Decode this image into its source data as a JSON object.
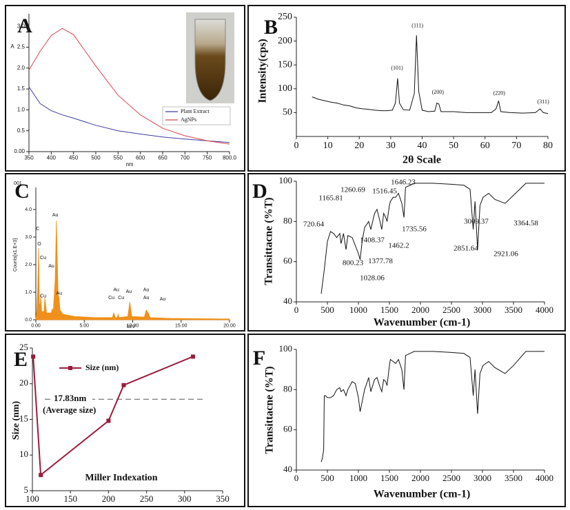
{
  "chart_data": [
    {
      "type": "line",
      "label": "A",
      "ylabel": "A",
      "xlabel": "nm",
      "x": [
        350,
        375,
        400,
        425,
        450,
        500,
        550,
        600,
        650,
        700,
        750,
        800
      ],
      "series": [
        {
          "name": "Plant Extract",
          "color": "#3c3c9c",
          "values": [
            1.55,
            1.15,
            0.98,
            0.88,
            0.8,
            0.63,
            0.5,
            0.42,
            0.35,
            0.3,
            0.26,
            0.22
          ]
        },
        {
          "name": "AgNPs",
          "color": "#d8434c",
          "values": [
            1.95,
            2.4,
            2.78,
            2.95,
            2.8,
            2.05,
            1.35,
            0.88,
            0.56,
            0.38,
            0.26,
            0.18
          ]
        }
      ],
      "xlim": [
        350,
        800
      ],
      "ylim": [
        0,
        3.3
      ],
      "xticks": [
        350,
        400,
        450,
        500,
        550,
        600,
        650,
        700,
        750,
        {
          "value": 800,
          "label": "800.0"
        }
      ],
      "yticks": [
        {
          "value": 0,
          "label": "0.00"
        },
        0.5,
        {
          "value": 1,
          "label": "1.0"
        },
        1.5,
        {
          "value": 2,
          "label": "2.0"
        },
        2.5,
        {
          "value": 3,
          "label": "3.0"
        }
      ],
      "legend": "right"
    },
    {
      "type": "line",
      "label": "B",
      "ylabel": "Intensity(cps)",
      "xlabel": "2θ Scale",
      "x": [
        5,
        7,
        9,
        11,
        13,
        15,
        17,
        19,
        21,
        23,
        25,
        27,
        29,
        30.5,
        31.5,
        32.2,
        32.8,
        34,
        36,
        37.5,
        38.2,
        38.9,
        40,
        42,
        44,
        44.7,
        45.3,
        46,
        50,
        54,
        58,
        62,
        63.5,
        64.3,
        65,
        68,
        72,
        76,
        77.5,
        78.5,
        80
      ],
      "series": [
        {
          "name": "XRD",
          "color": "#111111",
          "values": [
            83,
            78,
            75,
            72,
            70,
            66,
            64,
            60,
            58,
            57,
            55,
            54,
            54,
            55,
            70,
            122,
            70,
            56,
            55,
            90,
            212,
            95,
            55,
            52,
            53,
            70,
            68,
            52,
            52,
            50,
            50,
            50,
            58,
            75,
            52,
            50,
            49,
            50,
            58,
            50,
            48
          ]
        }
      ],
      "xlim": [
        0,
        80
      ],
      "ylim": [
        0,
        250
      ],
      "xticks": [
        0,
        10,
        20,
        30,
        40,
        50,
        60,
        70,
        80
      ],
      "yticks": [
        50,
        100,
        150,
        200,
        250
      ],
      "annotations": [
        {
          "text": "(101)",
          "x": 32,
          "y": 143
        },
        {
          "text": "(111)",
          "x": 38.5,
          "y": 232
        },
        {
          "text": "(200)",
          "x": 45,
          "y": 92
        },
        {
          "text": "(220)",
          "x": 64.5,
          "y": 90
        },
        {
          "text": "(311)",
          "x": 78.5,
          "y": 72
        }
      ]
    },
    {
      "type": "area",
      "label": "C",
      "ylabel": "Counts[x1.E+3]",
      "xlabel": "keV",
      "subtitle": "001",
      "x": [
        0,
        0.1,
        0.2,
        0.28,
        0.36,
        0.45,
        0.52,
        0.6,
        0.85,
        0.93,
        1.0,
        1.1,
        1.6,
        1.7,
        1.8,
        2.0,
        2.12,
        2.2,
        2.3,
        2.4,
        2.5,
        2.8,
        4,
        6,
        7.9,
        8.05,
        8.2,
        8.4,
        8.5,
        8.6,
        9.5,
        9.7,
        9.9,
        11.2,
        11.4,
        11.6,
        11.8,
        14,
        17,
        20
      ],
      "series": [
        {
          "name": "EDS",
          "color": "#f0901a",
          "values": [
            0.05,
            0.3,
            1.2,
            2.6,
            0.6,
            0.5,
            0.9,
            0.3,
            0.3,
            0.8,
            0.6,
            0.25,
            0.25,
            0.4,
            0.3,
            1.5,
            3.6,
            2.4,
            0.9,
            0.8,
            0.35,
            0.2,
            0.12,
            0.08,
            0.08,
            0.25,
            0.08,
            0.08,
            0.2,
            0.08,
            0.12,
            0.65,
            0.12,
            0.1,
            0.35,
            0.25,
            0.08,
            0.05,
            0.04,
            0.03
          ]
        }
      ],
      "xlim": [
        0,
        20
      ],
      "ylim": [
        0,
        4.8
      ],
      "xticks": [
        {
          "value": 0,
          "label": "0.00"
        },
        {
          "value": 5,
          "label": "5.00"
        },
        {
          "value": 10,
          "label": "10.00"
        },
        {
          "value": 15,
          "label": "15.00"
        },
        {
          "value": 20,
          "label": "20.00"
        }
      ],
      "yticks": [
        {
          "value": 0,
          "label": "0.0"
        },
        {
          "value": 1,
          "label": "1.0"
        },
        {
          "value": 2,
          "label": "2.0"
        },
        {
          "value": 3,
          "label": "3.0"
        },
        {
          "value": 4,
          "label": "4.0"
        }
      ],
      "annotations": [
        {
          "text": "C",
          "x": 0.2,
          "y": 3.3
        },
        {
          "text": "O",
          "x": 0.35,
          "y": 2.75
        },
        {
          "text": "Cu",
          "x": 0.75,
          "y": 2.25
        },
        {
          "text": "Au",
          "x": 1.6,
          "y": 1.95
        },
        {
          "text": "Cu",
          "x": 0.75,
          "y": 0.86
        },
        {
          "text": "Au",
          "x": 2.4,
          "y": 0.96
        },
        {
          "text": "Au",
          "x": 2.0,
          "y": 3.8
        },
        {
          "text": "Cu",
          "x": 7.8,
          "y": 0.8
        },
        {
          "text": "Au",
          "x": 8.3,
          "y": 1.08
        },
        {
          "text": "Cu",
          "x": 8.8,
          "y": 0.8
        },
        {
          "text": "Au",
          "x": 9.6,
          "y": 1.02
        },
        {
          "text": "Au",
          "x": 11.4,
          "y": 1.08
        },
        {
          "text": "Au",
          "x": 11.4,
          "y": 0.8
        },
        {
          "text": "Au",
          "x": 13.1,
          "y": 0.75
        }
      ]
    },
    {
      "type": "line",
      "label": "D",
      "ylabel": "Transittacne (%T)",
      "xlabel": "Wavenumber (cm-1)",
      "x": [
        400,
        450,
        500,
        550,
        600,
        650,
        700,
        720,
        760,
        800,
        830,
        900,
        950,
        1000,
        1028,
        1060,
        1100,
        1165,
        1200,
        1260,
        1300,
        1340,
        1377,
        1408,
        1440,
        1462,
        1500,
        1516,
        1560,
        1600,
        1646,
        1700,
        1735,
        1760,
        1900,
        2200,
        2500,
        2700,
        2800,
        2851,
        2880,
        2921,
        2960,
        3009,
        3100,
        3200,
        3364,
        3500,
        3700,
        4000
      ],
      "series": [
        {
          "name": "FTIR",
          "color": "#111111",
          "values": [
            44,
            56,
            70,
            75,
            74,
            72,
            74,
            69,
            74,
            66,
            73,
            72,
            68,
            64,
            61,
            70,
            77,
            80,
            76,
            84,
            86,
            81,
            76,
            84,
            82,
            80,
            88,
            90,
            92,
            92,
            94,
            89,
            82,
            97,
            99,
            99,
            98.5,
            98,
            96,
            76,
            90,
            66,
            88,
            92,
            94,
            91,
            89,
            93,
            99,
            99
          ]
        }
      ],
      "xlim": [
        0,
        4000
      ],
      "ylim": [
        40,
        100
      ],
      "xticks": [
        0,
        500,
        1000,
        1500,
        2000,
        2500,
        3000,
        3500,
        4000
      ],
      "yticks": [
        40,
        60,
        80,
        100
      ],
      "annotations": [
        {
          "text": "1646.23",
          "x": 1722,
          "y": 99.3
        },
        {
          "text": "1260.69",
          "x": 911,
          "y": 95.5
        },
        {
          "text": "1516.45",
          "x": 1422,
          "y": 94.9
        },
        {
          "text": "1165.81",
          "x": 556,
          "y": 91.4
        },
        {
          "text": "720.64",
          "x": 278,
          "y": 78.4
        },
        {
          "text": "1735.56",
          "x": 1900,
          "y": 76
        },
        {
          "text": "1408.37",
          "x": 1222,
          "y": 70.5
        },
        {
          "text": "1462.2",
          "x": 1650,
          "y": 67.8
        },
        {
          "text": "3009.37",
          "x": 2900,
          "y": 79.8
        },
        {
          "text": "3364.58",
          "x": 3700,
          "y": 79
        },
        {
          "text": "2851.64",
          "x": 2733,
          "y": 66.4
        },
        {
          "text": "2921.06",
          "x": 3378,
          "y": 63.7
        },
        {
          "text": "800.23",
          "x": 911,
          "y": 59.2
        },
        {
          "text": "1377.78",
          "x": 1356,
          "y": 60
        },
        {
          "text": "1028.06",
          "x": 1222,
          "y": 51.7
        }
      ]
    },
    {
      "type": "line",
      "label": "E",
      "ylabel": "Size (nm)",
      "xlabel": "Miller Indexation",
      "x": [
        101,
        111,
        200,
        220,
        311
      ],
      "series": [
        {
          "name": "Size (nm)",
          "color": "#9b1b3b",
          "values": [
            23.8,
            7.2,
            14.8,
            19.8,
            23.8
          ]
        }
      ],
      "xlim": [
        100,
        350
      ],
      "ylim": [
        5,
        25
      ],
      "xticks": [
        100,
        150,
        200,
        250,
        300,
        350
      ],
      "yticks": [
        5,
        10,
        15,
        20,
        25
      ],
      "average": {
        "value": 17.83,
        "label": "17.83nm",
        "caption": "(Average size)"
      },
      "markers": true
    },
    {
      "type": "line",
      "label": "F",
      "ylabel": "Transittacne (%T)",
      "xlabel": "Wavenumber (cm-1)",
      "x": [
        400,
        420,
        440,
        450,
        470,
        500,
        550,
        600,
        650,
        700,
        720,
        760,
        800,
        830,
        900,
        950,
        1000,
        1028,
        1060,
        1100,
        1165,
        1200,
        1260,
        1300,
        1340,
        1377,
        1408,
        1440,
        1462,
        1500,
        1516,
        1560,
        1600,
        1646,
        1700,
        1735,
        1760,
        1900,
        2200,
        2500,
        2700,
        2800,
        2851,
        2880,
        2921,
        2960,
        3009,
        3100,
        3200,
        3364,
        3500,
        3700,
        4000
      ],
      "series": [
        {
          "name": "FTIR",
          "color": "#111111",
          "values": [
            44,
            46,
            50,
            77,
            77,
            76,
            76,
            77,
            80,
            81,
            79,
            80,
            77,
            80,
            84,
            83,
            76,
            69,
            74,
            80,
            86,
            79,
            85,
            86,
            82,
            79,
            85,
            84,
            82,
            92,
            95,
            94,
            93,
            95,
            90,
            80,
            97,
            99,
            99,
            98.5,
            98,
            96,
            77,
            90,
            68,
            88,
            92,
            94,
            91,
            88,
            92,
            99,
            99
          ]
        }
      ],
      "xlim": [
        0,
        4000
      ],
      "ylim": [
        40,
        100
      ],
      "xticks": [
        0,
        500,
        1000,
        1500,
        2000,
        2500,
        3000,
        3500,
        4000
      ],
      "yticks": [
        40,
        60,
        80,
        100
      ]
    }
  ]
}
